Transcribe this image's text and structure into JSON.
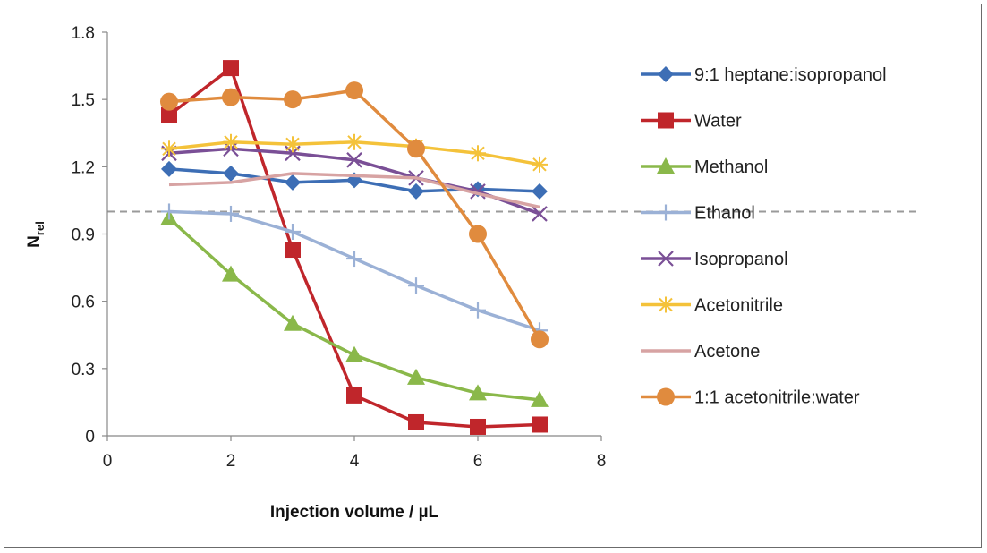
{
  "chart_data": {
    "type": "line",
    "title": "",
    "xlabel": "Injection volume / µL",
    "ylabel": "N",
    "ylabel_sub": "rel",
    "xlim": [
      0,
      8
    ],
    "ylim": [
      0,
      1.8
    ],
    "xticks": [
      "0",
      "2",
      "4",
      "6",
      "8"
    ],
    "yticks": [
      "0",
      "0.3",
      "0.6",
      "0.9",
      "1.2",
      "1.5",
      "1.8"
    ],
    "reference_line": 1.0,
    "legend_position": "right",
    "x": [
      1,
      2,
      3,
      4,
      5,
      6,
      7
    ],
    "series": [
      {
        "name": "9:1 heptane:isopropanol",
        "color": "#3d6eb5",
        "marker": "diamond",
        "values": [
          1.19,
          1.17,
          1.13,
          1.14,
          1.09,
          1.1,
          1.09
        ]
      },
      {
        "name": "Water",
        "color": "#c0262b",
        "marker": "square",
        "values": [
          1.43,
          1.64,
          0.83,
          0.18,
          0.06,
          0.04,
          0.05
        ]
      },
      {
        "name": "Methanol",
        "color": "#8ab84a",
        "marker": "triangle",
        "values": [
          0.97,
          0.72,
          0.5,
          0.36,
          0.26,
          0.19,
          0.16
        ]
      },
      {
        "name": "Ethanol",
        "color": "#9bb1d6",
        "marker": "plus",
        "values": [
          1.0,
          0.99,
          0.91,
          0.79,
          0.67,
          0.56,
          0.47
        ]
      },
      {
        "name": "Isopropanol",
        "color": "#7a4f96",
        "marker": "x",
        "values": [
          1.26,
          1.28,
          1.26,
          1.23,
          1.15,
          1.09,
          0.99
        ]
      },
      {
        "name": "Acetonitrile",
        "color": "#f4c23a",
        "marker": "star",
        "values": [
          1.28,
          1.31,
          1.3,
          1.31,
          1.29,
          1.26,
          1.21
        ]
      },
      {
        "name": "Acetone",
        "color": "#d7a3a3",
        "marker": "none",
        "values": [
          1.12,
          1.13,
          1.17,
          1.16,
          1.15,
          1.08,
          1.02
        ]
      },
      {
        "name": "1:1 acetonitrile:water",
        "color": "#e08b3e",
        "marker": "circle",
        "values": [
          1.49,
          1.51,
          1.5,
          1.54,
          1.28,
          0.9,
          0.43
        ]
      }
    ]
  }
}
